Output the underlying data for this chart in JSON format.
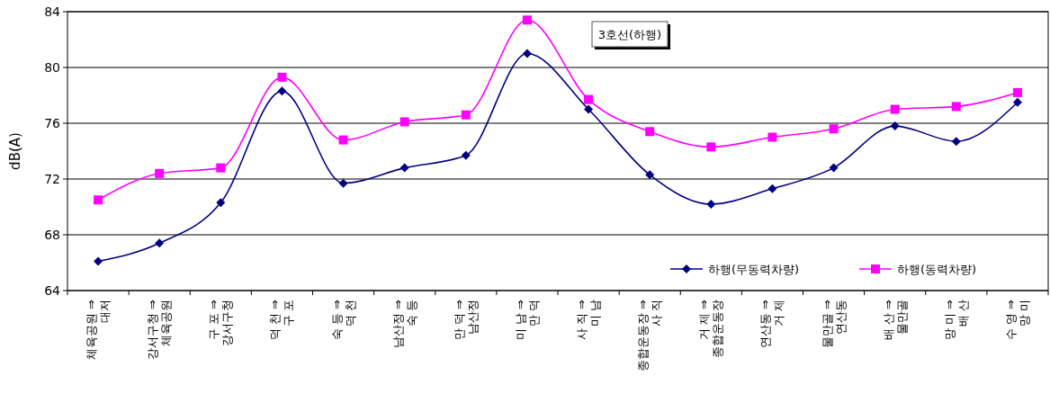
{
  "chart_data": {
    "type": "line",
    "ylabel": "dB(A)",
    "annotations": [
      "3호선(하행)"
    ],
    "categories": [
      "체육공원 ⇒ 대저",
      "강서구청 ⇒ 체육공원",
      "구 포 ⇒ 강서구청",
      "덕 천 ⇒ 구 포",
      "숙 등 ⇒ 덕 천",
      "남산정 ⇒ 숙 등",
      "만 덕 ⇒ 남산정",
      "미 남 ⇒ 만 덕",
      "사 직 ⇒ 미 남",
      "종합운동장 ⇒ 사 직",
      "거 제 ⇒ 종합운동장",
      "연산동 ⇒ 거 제",
      "물만골 ⇒ 연산동",
      "배 산 ⇒ 물만골",
      "망 미 ⇒ 배 산",
      "수 영 ⇒ 망 미"
    ],
    "series": [
      {
        "name": "하행(무동력차량)",
        "color": "#000080",
        "marker": "diamond",
        "values": [
          66.1,
          67.4,
          70.3,
          78.3,
          71.7,
          72.8,
          73.7,
          81.0,
          77.0,
          72.3,
          70.2,
          71.3,
          72.8,
          75.8,
          74.7,
          77.5
        ]
      },
      {
        "name": "하행(동력차량)",
        "color": "#ff00ff",
        "marker": "square",
        "values": [
          70.5,
          72.4,
          72.8,
          79.3,
          74.8,
          76.1,
          76.6,
          83.4,
          77.7,
          75.4,
          74.3,
          75.0,
          75.6,
          77.0,
          77.2,
          78.2
        ]
      }
    ],
    "ylim": [
      64,
      84
    ],
    "yticks": [
      64,
      68,
      72,
      76,
      80,
      84
    ],
    "grid": "y",
    "legend": "bottom right"
  }
}
